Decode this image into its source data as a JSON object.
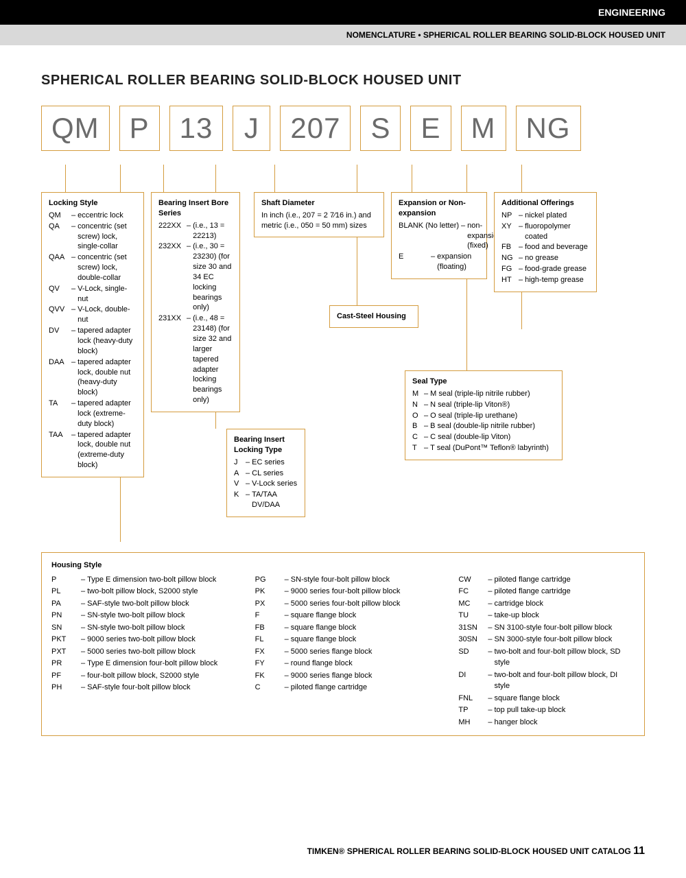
{
  "header": {
    "section": "ENGINEERING",
    "subtitle": "NOMENCLATURE • SPHERICAL ROLLER BEARING SOLID-BLOCK HOUSED UNIT"
  },
  "title": "SPHERICAL ROLLER BEARING SOLID-BLOCK HOUSED UNIT",
  "code_parts": [
    "QM",
    "P",
    "13",
    "J",
    "207",
    "S",
    "E",
    "M",
    "NG"
  ],
  "locking_style": {
    "title": "Locking Style",
    "items": [
      {
        "c": "QM",
        "t": "eccentric lock"
      },
      {
        "c": "QA",
        "t": "concentric (set screw) lock, single-collar"
      },
      {
        "c": "QAA",
        "t": "concentric (set screw) lock, double-collar"
      },
      {
        "c": "QV",
        "t": "V-Lock, single-nut"
      },
      {
        "c": "QVV",
        "t": "V-Lock, double-nut"
      },
      {
        "c": "DV",
        "t": "tapered adapter lock (heavy-duty block)"
      },
      {
        "c": "DAA",
        "t": "tapered adapter lock, double nut (heavy-duty block)"
      },
      {
        "c": "TA",
        "t": "tapered adapter lock (extreme-duty block)"
      },
      {
        "c": "TAA",
        "t": "tapered adapter lock, double nut (extreme-duty block)"
      }
    ]
  },
  "bore_series": {
    "title": "Bearing Insert Bore Series",
    "items": [
      {
        "c": "222XX",
        "t": "(i.e., 13 = 22213)"
      },
      {
        "c": "232XX",
        "t": "(i.e., 30 = 23230) (for size 30 and 34 EC locking bearings only)"
      },
      {
        "c": "231XX",
        "t": "(i.e., 48 = 23148) (for size 32 and larger tapered adapter locking bearings only)"
      }
    ]
  },
  "locking_type": {
    "title": "Bearing Insert Locking Type",
    "items": [
      {
        "c": "J",
        "t": "EC series"
      },
      {
        "c": "A",
        "t": "CL series"
      },
      {
        "c": "V",
        "t": "V-Lock series"
      },
      {
        "c": "K",
        "t": "TA/TAA DV/DAA"
      }
    ]
  },
  "shaft_diameter": {
    "title": "Shaft Diameter",
    "text": "In inch (i.e., 207 = 2 7⁄16 in.) and metric (i.e., 050 = 50 mm) sizes"
  },
  "cast_steel": {
    "title": "Cast-Steel Housing"
  },
  "expansion": {
    "title": "Expansion or Non-expansion",
    "items": [
      {
        "c": "BLANK (No letter)",
        "t": "non-expansion (fixed)"
      },
      {
        "c": "E",
        "t": "expansion (floating)"
      }
    ]
  },
  "seal_type": {
    "title": "Seal Type",
    "items": [
      {
        "c": "M",
        "t": "M seal (triple-lip nitrile rubber)"
      },
      {
        "c": "N",
        "t": "N seal (triple-lip Viton®)"
      },
      {
        "c": "O",
        "t": "O seal (triple-lip urethane)"
      },
      {
        "c": "B",
        "t": "B seal (double-lip nitrile rubber)"
      },
      {
        "c": "C",
        "t": "C seal (double-lip Viton)"
      },
      {
        "c": "T",
        "t": "T seal (DuPont™ Teflon® labyrinth)"
      }
    ]
  },
  "additional": {
    "title": "Additional Offerings",
    "items": [
      {
        "c": "NP",
        "t": "nickel plated"
      },
      {
        "c": "XY",
        "t": "fluoropolymer coated"
      },
      {
        "c": "FB",
        "t": "food and beverage"
      },
      {
        "c": "NG",
        "t": "no grease"
      },
      {
        "c": "FG",
        "t": "food-grade grease"
      },
      {
        "c": "HT",
        "t": "high-temp grease"
      }
    ]
  },
  "housing": {
    "title": "Housing Style",
    "col1": [
      {
        "c": "P",
        "t": "Type E dimension two-bolt pillow block"
      },
      {
        "c": "PL",
        "t": "two-bolt pillow block, S2000 style"
      },
      {
        "c": "PA",
        "t": "SAF-style two-bolt pillow block"
      },
      {
        "c": "PN",
        "t": "SN-style two-bolt pillow block"
      },
      {
        "c": "SN",
        "t": "SN-style two-bolt pillow block"
      },
      {
        "c": "PKT",
        "t": "9000 series two-bolt pillow block"
      },
      {
        "c": "PXT",
        "t": "5000 series two-bolt pillow block"
      },
      {
        "c": "PR",
        "t": "Type E dimension four-bolt pillow block"
      },
      {
        "c": "PF",
        "t": "four-bolt pillow block, S2000 style"
      },
      {
        "c": "PH",
        "t": "SAF-style four-bolt pillow block"
      }
    ],
    "col2": [
      {
        "c": "PG",
        "t": "SN-style four-bolt pillow block"
      },
      {
        "c": "PK",
        "t": "9000 series four-bolt pillow block"
      },
      {
        "c": "PX",
        "t": "5000 series four-bolt pillow block"
      },
      {
        "c": "F",
        "t": "square flange block"
      },
      {
        "c": "FB",
        "t": "square flange block"
      },
      {
        "c": "FL",
        "t": "square flange block"
      },
      {
        "c": "FX",
        "t": "5000 series flange block"
      },
      {
        "c": "FY",
        "t": "round flange block"
      },
      {
        "c": "FK",
        "t": "9000 series flange block"
      },
      {
        "c": "C",
        "t": "piloted flange cartridge"
      }
    ],
    "col3": [
      {
        "c": "CW",
        "t": "piloted flange cartridge"
      },
      {
        "c": "FC",
        "t": "piloted flange cartridge"
      },
      {
        "c": "MC",
        "t": "cartridge block"
      },
      {
        "c": "TU",
        "t": "take-up block"
      },
      {
        "c": "31SN",
        "t": "SN 3100-style four-bolt pillow block"
      },
      {
        "c": "30SN",
        "t": "SN 3000-style four-bolt pillow block"
      },
      {
        "c": "SD",
        "t": "two-bolt and four-bolt pillow block, SD style"
      },
      {
        "c": "DI",
        "t": "two-bolt and four-bolt pillow block, DI style"
      },
      {
        "c": "FNL",
        "t": "square flange block"
      },
      {
        "c": "TP",
        "t": "top pull take-up block"
      },
      {
        "c": "MH",
        "t": "hanger block"
      }
    ]
  },
  "footer": {
    "text": "TIMKEN® SPHERICAL ROLLER BEARING SOLID-BLOCK HOUSED UNIT CATALOG",
    "page": "11"
  }
}
